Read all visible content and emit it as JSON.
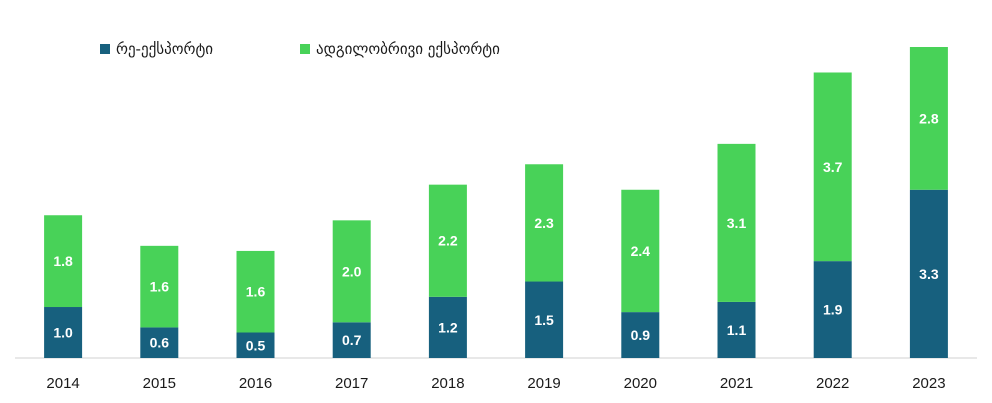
{
  "chart_data": {
    "type": "bar",
    "stacked": true,
    "categories": [
      "2014",
      "2015",
      "2016",
      "2017",
      "2018",
      "2019",
      "2020",
      "2021",
      "2022",
      "2023"
    ],
    "series": [
      {
        "name": "რე-ექსპორტი",
        "color": "#17607e",
        "values": [
          1.0,
          0.6,
          0.5,
          0.7,
          1.2,
          1.5,
          0.9,
          1.1,
          1.9,
          3.3
        ]
      },
      {
        "name": "ადგილობრივი ექსპორტი",
        "color": "#48d258",
        "values": [
          1.8,
          1.6,
          1.6,
          2.0,
          2.2,
          2.3,
          2.4,
          3.1,
          3.7,
          2.8
        ]
      }
    ],
    "value_labels": {
      "re_export": [
        "1.0",
        "0.6",
        "0.5",
        "0.7",
        "1.2",
        "1.5",
        "0.9",
        "1.1",
        "1.9",
        "3.3"
      ],
      "domestic_export": [
        "1.8",
        "1.6",
        "1.6",
        "2.0",
        "2.2",
        "2.3",
        "2.4",
        "3.1",
        "3.7",
        "2.8"
      ]
    },
    "ylim": [
      0,
      6.1
    ],
    "grid": false,
    "legend_position": "top-left"
  }
}
